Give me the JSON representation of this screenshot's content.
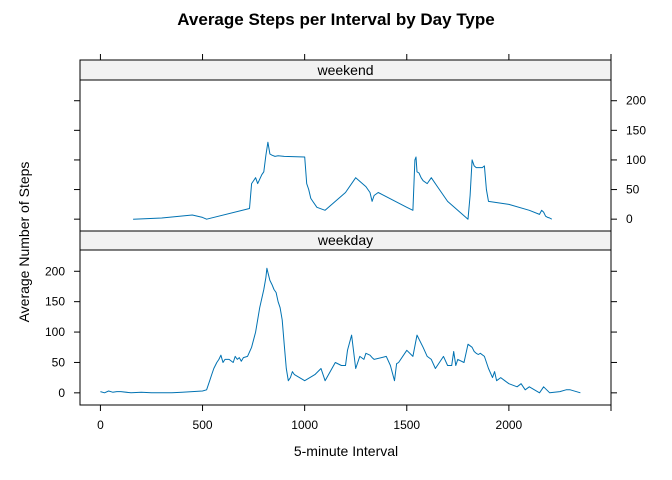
{
  "chart_data": {
    "type": "line",
    "title": "Average Steps per Interval by Day Type",
    "xlabel": "5-minute Interval",
    "ylabel": "Average Number of Steps",
    "xlim": [
      -100,
      2500
    ],
    "ylim": [
      -20,
      235
    ],
    "x_ticks": [
      0,
      500,
      1000,
      1500,
      2000
    ],
    "y_ticks": [
      0,
      50,
      100,
      150,
      200
    ],
    "grid": false,
    "line_color": "#0072b2",
    "panels": [
      {
        "strip": "weekend",
        "series": [
          {
            "x": [
              160,
              300,
              450,
              500,
              520,
              730,
              740,
              760,
              770,
              790,
              800,
              810,
              820,
              830,
              840,
              855,
              870,
              900,
              1000,
              1010,
              1020,
              1030,
              1040,
              1060,
              1100,
              1200,
              1250,
              1300,
              1320,
              1330,
              1340,
              1360,
              1500,
              1530,
              1540,
              1545,
              1550,
              1560,
              1570,
              1580,
              1600,
              1620,
              1650,
              1700,
              1800,
              1810,
              1820,
              1830,
              1840,
              1870,
              1880,
              1890,
              1900,
              2000,
              2100,
              2150,
              2160,
              2170,
              2180,
              2190,
              2200,
              2210
            ],
            "y": [
              0,
              2,
              7,
              3,
              0,
              18,
              60,
              70,
              60,
              75,
              80,
              108,
              130,
              110,
              108,
              106,
              107,
              106,
              105,
              60,
              50,
              35,
              30,
              20,
              15,
              45,
              70,
              55,
              45,
              30,
              40,
              45,
              20,
              15,
              100,
              105,
              80,
              78,
              70,
              65,
              60,
              70,
              55,
              30,
              0,
              40,
              100,
              90,
              87,
              87,
              90,
              50,
              30,
              25,
              15,
              8,
              15,
              12,
              5,
              3,
              2,
              0
            ]
          }
        ]
      },
      {
        "strip": "weekday",
        "series": [
          {
            "x": [
              0,
              20,
              40,
              60,
              80,
              100,
              150,
              200,
              250,
              300,
              350,
              400,
              450,
              500,
              520,
              535,
              545,
              555,
              570,
              580,
              590,
              600,
              610,
              630,
              650,
              660,
              670,
              680,
              690,
              700,
              720,
              740,
              760,
              780,
              800,
              810,
              815,
              820,
              830,
              840,
              850,
              860,
              870,
              880,
              890,
              900,
              910,
              920,
              930,
              940,
              950,
              1000,
              1050,
              1080,
              1100,
              1150,
              1180,
              1200,
              1210,
              1230,
              1250,
              1270,
              1290,
              1300,
              1320,
              1330,
              1340,
              1400,
              1420,
              1440,
              1450,
              1460,
              1500,
              1530,
              1550,
              1580,
              1600,
              1620,
              1640,
              1680,
              1700,
              1720,
              1730,
              1740,
              1750,
              1780,
              1800,
              1820,
              1830,
              1840,
              1850,
              1860,
              1880,
              1900,
              1920,
              1930,
              1940,
              1960,
              1980,
              2000,
              2040,
              2060,
              2080,
              2100,
              2150,
              2160,
              2170,
              2200,
              2250,
              2280,
              2300,
              2350
            ],
            "y": [
              2,
              0,
              3,
              1,
              2,
              2,
              0,
              1,
              0,
              0,
              0,
              1,
              2,
              3,
              5,
              20,
              30,
              40,
              50,
              55,
              62,
              50,
              55,
              55,
              50,
              60,
              55,
              58,
              52,
              58,
              60,
              75,
              100,
              140,
              170,
              190,
              205,
              198,
              185,
              178,
              170,
              165,
              150,
              140,
              120,
              80,
              40,
              20,
              25,
              35,
              30,
              20,
              30,
              40,
              20,
              50,
              45,
              45,
              70,
              95,
              40,
              60,
              55,
              65,
              62,
              58,
              55,
              60,
              45,
              20,
              48,
              50,
              70,
              60,
              95,
              75,
              60,
              55,
              40,
              60,
              45,
              45,
              68,
              45,
              55,
              50,
              80,
              75,
              68,
              65,
              63,
              65,
              60,
              40,
              25,
              35,
              20,
              25,
              20,
              15,
              10,
              15,
              5,
              10,
              0,
              5,
              10,
              0,
              2,
              5,
              5,
              0
            ]
          }
        ]
      }
    ]
  }
}
